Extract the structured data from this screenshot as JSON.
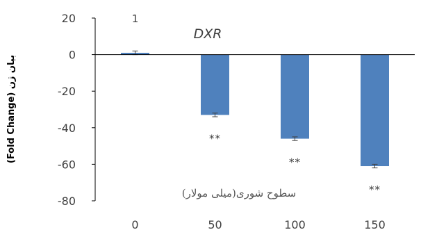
{
  "chart_data": {
    "type": "bar",
    "categories": [
      "0",
      "50",
      "100",
      "150"
    ],
    "values": [
      1,
      -33,
      -46,
      -61
    ],
    "error": [
      1,
      1,
      1,
      1
    ],
    "data_labels": [
      "1",
      "",
      "",
      ""
    ],
    "significance": [
      "",
      "**",
      "**",
      "**"
    ],
    "series_name": "DXR",
    "xlabel": "سطوح شوری(میلی مولار)",
    "ylabel": "(Fold Change) بیان ژن",
    "ylim": [
      -80,
      20
    ],
    "yticks": [
      "20",
      "0",
      "-20",
      "-40",
      "-60",
      "-80"
    ],
    "grid": false,
    "bar_color": "#4F81BD",
    "axis_color": "#000000"
  }
}
